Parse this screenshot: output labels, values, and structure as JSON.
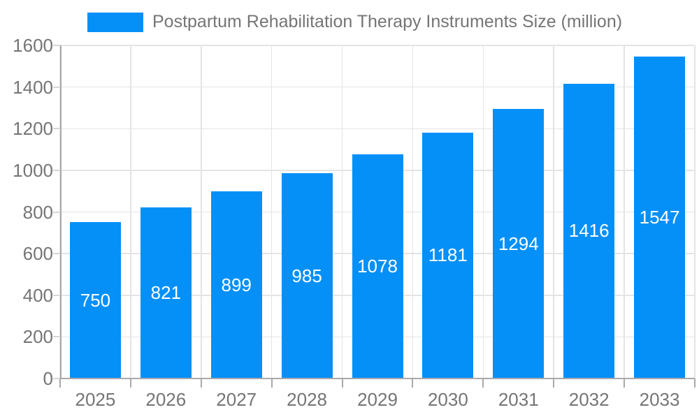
{
  "colors": {
    "bar": "#0590f8",
    "grid": "#e4e4e4",
    "axis": "#a9a9a9",
    "ytick": "#d6d6d6",
    "text": "#757575",
    "bar_label": "#ffffff",
    "background": "#ffffff"
  },
  "legend": {
    "label": "Postpartum Rehabilitation Therapy Instruments Size (million)"
  },
  "chart_data": {
    "type": "bar",
    "title": "Postpartum Rehabilitation Therapy Instruments Size (million)",
    "series_name": "Postpartum Rehabilitation Therapy Instruments Size (million)",
    "categories": [
      "2025",
      "2026",
      "2027",
      "2028",
      "2029",
      "2030",
      "2031",
      "2032",
      "2033"
    ],
    "values": [
      750,
      821,
      899,
      985,
      1078,
      1181,
      1294,
      1416,
      1547
    ],
    "xlabel": "",
    "ylabel": "",
    "ylim": [
      0,
      1600
    ],
    "yticks": [
      0,
      200,
      400,
      600,
      800,
      1000,
      1200,
      1400,
      1600
    ],
    "grid": true,
    "legend_position": "top",
    "bar_value_labels": true
  }
}
